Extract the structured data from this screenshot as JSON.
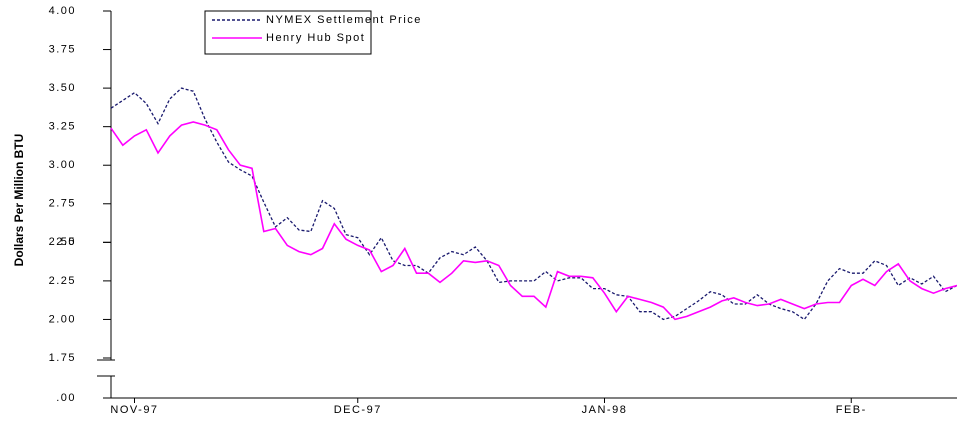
{
  "chart_data": {
    "type": "line",
    "y_label": "Dollars Per Million BTU",
    "categories": [
      null,
      null,
      "NOV-97",
      null,
      null,
      null,
      null,
      null,
      null,
      null,
      null,
      null,
      null,
      null,
      null,
      null,
      null,
      null,
      null,
      null,
      null,
      "DEC-97",
      null,
      null,
      null,
      null,
      null,
      null,
      null,
      null,
      null,
      null,
      null,
      null,
      null,
      null,
      null,
      null,
      null,
      null,
      null,
      null,
      "JAN-98",
      null,
      null,
      null,
      null,
      null,
      null,
      null,
      null,
      null,
      null,
      null,
      null,
      null,
      null,
      null,
      null,
      null,
      null,
      null,
      null,
      "FEB-",
      null,
      null,
      null,
      null,
      null,
      null,
      null,
      null,
      null
    ],
    "series": [
      {
        "name": "NYMEX Settlement Price",
        "color": "#1a1a6e",
        "dash": "3,2",
        "values": [
          3.37,
          3.42,
          3.47,
          3.4,
          3.27,
          3.43,
          3.5,
          3.48,
          3.3,
          3.15,
          3.02,
          2.97,
          2.93,
          2.76,
          2.6,
          2.66,
          2.58,
          2.57,
          2.77,
          2.72,
          2.55,
          2.53,
          2.42,
          2.53,
          2.38,
          2.35,
          2.35,
          2.3,
          2.4,
          2.44,
          2.42,
          2.47,
          2.38,
          2.24,
          2.25,
          2.25,
          2.25,
          2.31,
          2.25,
          2.27,
          2.27,
          2.2,
          2.2,
          2.16,
          2.15,
          2.05,
          2.05,
          2.0,
          2.02,
          2.07,
          2.12,
          2.18,
          2.16,
          2.1,
          2.1,
          2.16,
          2.1,
          2.07,
          2.05,
          2.0,
          2.1,
          2.25,
          2.33,
          2.3,
          2.3,
          2.38,
          2.35,
          2.22,
          2.27,
          2.23,
          2.28,
          2.18,
          2.22
        ]
      },
      {
        "name": "Henry Hub Spot",
        "color": "#ff00ff",
        "values": [
          3.24,
          3.13,
          3.19,
          3.23,
          3.08,
          3.19,
          3.26,
          3.28,
          3.26,
          3.23,
          3.1,
          3.0,
          2.98,
          2.57,
          2.59,
          2.48,
          2.44,
          2.42,
          2.46,
          2.62,
          2.52,
          2.48,
          2.45,
          2.31,
          2.35,
          2.46,
          2.3,
          2.3,
          2.24,
          2.3,
          2.38,
          2.37,
          2.38,
          2.35,
          2.22,
          2.15,
          2.15,
          2.08,
          2.31,
          2.28,
          2.28,
          2.27,
          2.17,
          2.05,
          2.15,
          2.13,
          2.11,
          2.08,
          2.0,
          2.02,
          2.05,
          2.08,
          2.12,
          2.14,
          2.11,
          2.09,
          2.1,
          2.13,
          2.1,
          2.07,
          2.1,
          2.11,
          2.11,
          2.22,
          2.26,
          2.22,
          2.31,
          2.36,
          2.25,
          2.2,
          2.17,
          2.2,
          2.22
        ]
      }
    ],
    "ylim": [
      0,
      4
    ],
    "y_axis_break": [
      0,
      1.75
    ],
    "yticks": [
      {
        "value": 0,
        "label": ".00"
      },
      1.75,
      {
        "value": 2,
        "label": "2.00"
      },
      2.25,
      2.5,
      {
        "value": 2.5,
        "label": "2.50"
      },
      2.75,
      {
        "value": 3,
        "label": "3.00"
      },
      3.25,
      {
        "value": 3.5,
        "label": "3.50"
      },
      3.75,
      {
        "value": 4,
        "label": "4.00"
      }
    ],
    "grid": false,
    "legend": "top-left"
  }
}
